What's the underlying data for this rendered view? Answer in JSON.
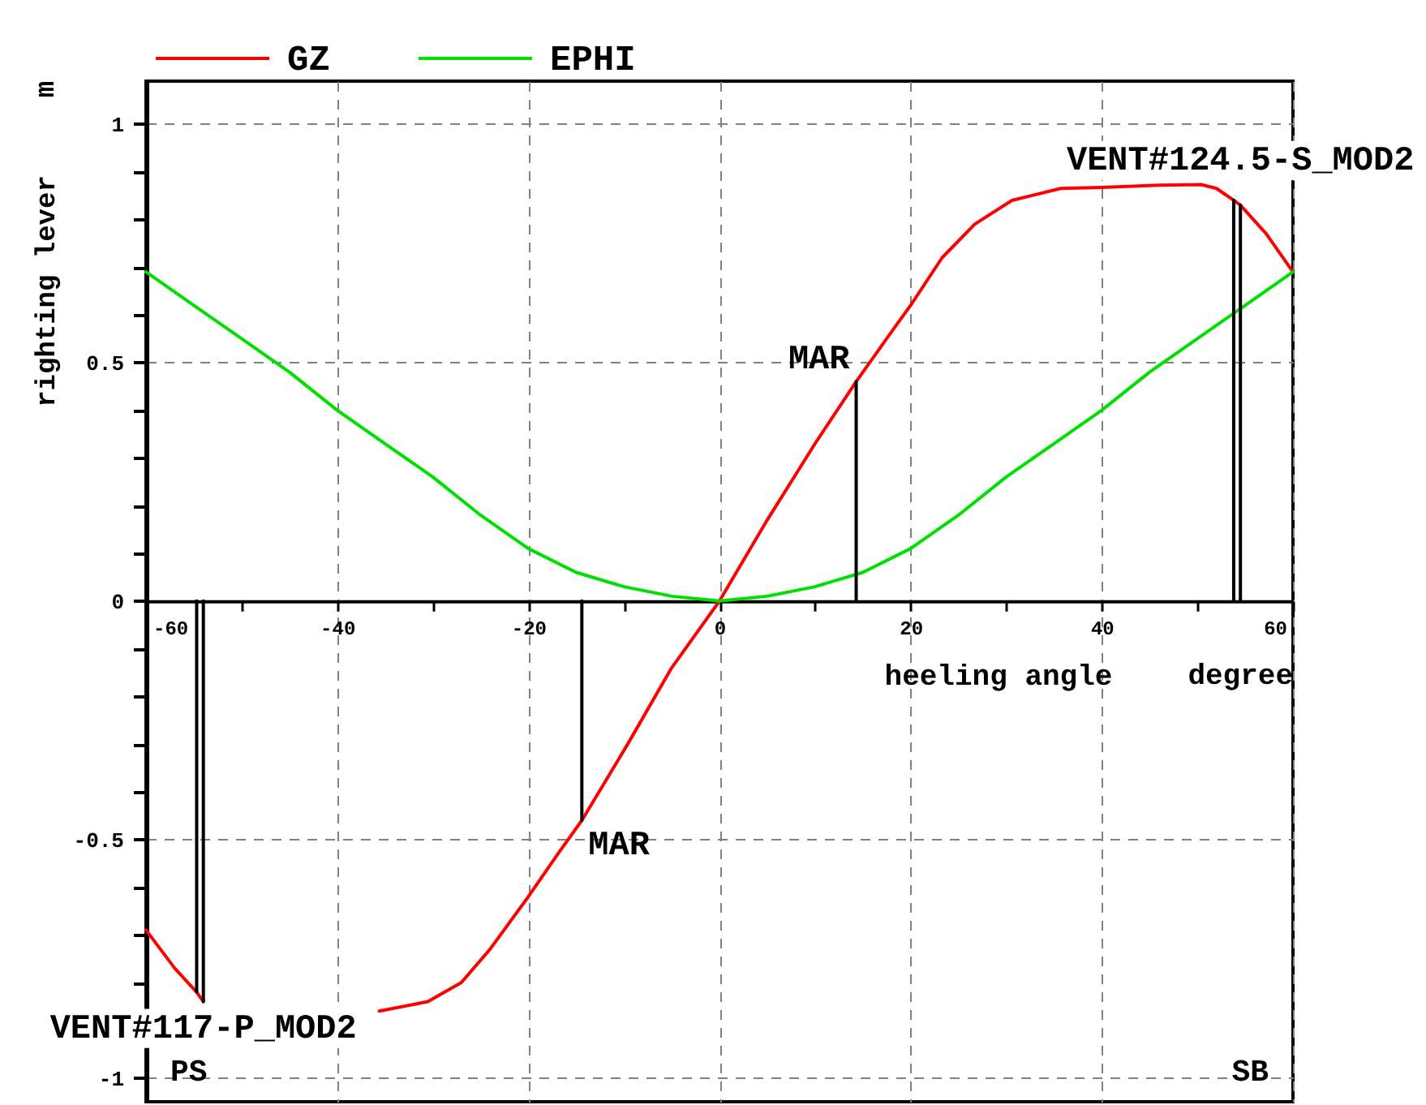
{
  "chart_data": {
    "type": "line",
    "xlabel": "heeling angle",
    "ylabel": "righting lever",
    "annotations": [
      {
        "text": "MAR",
        "x": 14.3,
        "y": 0.46
      },
      {
        "text": "MAR",
        "x": -14.4,
        "y": -0.46
      },
      {
        "text": "VENT#124.5-S_MOD2",
        "x": 54.5,
        "y": 0.83
      },
      {
        "text": "VENT#117-P_MOD2",
        "x": -54,
        "y": -0.84
      },
      "PS",
      "SB",
      "degree",
      "m"
    ],
    "series": [
      {
        "name": "GZ",
        "color": "#ff0000",
        "x": [
          -60,
          -57,
          -54.7,
          -54,
          -50,
          -45,
          -40,
          -35.6,
          -30.5,
          -27,
          -24,
          -20,
          -16.9,
          -14.4,
          -9.6,
          -5,
          0,
          5,
          10,
          14.3,
          18.2,
          20,
          23.3,
          26.7,
          30.6,
          35.7,
          40,
          46,
          50.4,
          52,
          53.8,
          54.5,
          57.2,
          60
        ],
        "values": [
          -0.69,
          -0.77,
          -0.82,
          -0.84,
          null,
          null,
          null,
          -0.86,
          -0.84,
          -0.8,
          -0.73,
          -0.62,
          -0.53,
          -0.46,
          -0.3,
          -0.14,
          0,
          0.17,
          0.33,
          0.46,
          0.57,
          0.62,
          0.72,
          0.79,
          0.84,
          0.865,
          0.867,
          0.872,
          0.873,
          0.865,
          0.84,
          0.83,
          0.77,
          0.69
        ]
      },
      {
        "name": "EPHI",
        "color": "#00e000",
        "x": [
          -60,
          -55,
          -50,
          -45,
          -40,
          -35,
          -30,
          -25,
          -20,
          -15,
          -10,
          -5,
          0,
          5,
          10,
          15,
          20,
          25,
          30,
          35,
          40,
          45,
          50,
          55,
          60
        ],
        "values": [
          0.69,
          0.62,
          0.55,
          0.48,
          0.4,
          0.33,
          0.26,
          0.18,
          0.11,
          0.06,
          0.03,
          0.01,
          0,
          0.01,
          0.03,
          0.06,
          0.11,
          0.18,
          0.26,
          0.33,
          0.4,
          0.48,
          0.55,
          0.62,
          0.69
        ]
      },
      {
        "color": "#000000",
        "x": [
          -54.7,
          -54.7
        ],
        "values": [
          0,
          -0.82
        ]
      },
      {
        "color": "#000000",
        "x": [
          -54,
          -54
        ],
        "values": [
          0,
          -0.84
        ]
      },
      {
        "color": "#000000",
        "x": [
          -14.4,
          -14.4
        ],
        "values": [
          0,
          -0.46
        ]
      },
      {
        "color": "#000000",
        "x": [
          14.3,
          14.3
        ],
        "values": [
          0,
          0.46
        ]
      },
      {
        "color": "#000000",
        "x": [
          53.8,
          53.8
        ],
        "values": [
          0,
          0.84
        ]
      },
      {
        "color": "#000000",
        "x": [
          54.5,
          54.5
        ],
        "values": [
          0,
          0.83
        ]
      }
    ],
    "xlim": [
      -60,
      60
    ],
    "ylim": [
      -1.05,
      1.09
    ],
    "xticks": [
      -60,
      {
        "value": -50,
        "label": null
      },
      -40,
      {
        "value": -30,
        "label": null
      },
      -20,
      {
        "value": -10,
        "label": null
      },
      0,
      {
        "value": 10,
        "label": null
      },
      20,
      {
        "value": 30,
        "label": null
      },
      40,
      {
        "value": 50,
        "label": null
      },
      60
    ],
    "yticks": [
      -1,
      {
        "value": -0.8,
        "label": null
      },
      {
        "value": -0.7,
        "label": null
      },
      {
        "value": -0.6,
        "label": null
      },
      -0.5,
      {
        "value": -0.4,
        "label": null
      },
      {
        "value": -0.3,
        "label": null
      },
      {
        "value": -0.2,
        "label": null
      },
      {
        "value": -0.1,
        "label": null
      },
      0,
      {
        "value": 0.1,
        "label": null
      },
      {
        "value": 0.2,
        "label": null
      },
      {
        "value": 0.3,
        "label": null
      },
      {
        "value": 0.4,
        "label": null
      },
      0.5,
      {
        "value": 0.6,
        "label": null
      },
      {
        "value": 0.7,
        "label": null
      },
      {
        "value": 0.8,
        "label": null
      },
      {
        "value": 0.9,
        "label": null
      },
      1
    ],
    "grid": true,
    "legend": "top left",
    "marker": "none"
  }
}
